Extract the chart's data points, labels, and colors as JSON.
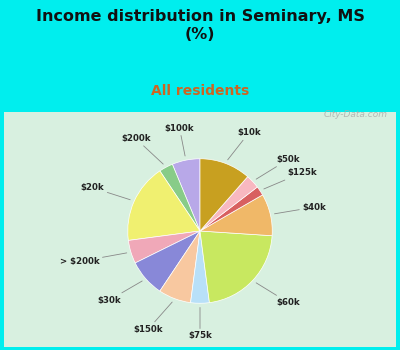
{
  "title": "Income distribution in Seminary, MS\n(%)",
  "subtitle": "All residents",
  "bg_cyan": "#00EEEE",
  "bg_chart": "#e8f5ee",
  "title_color": "#111111",
  "subtitle_color": "#cc6622",
  "labels": [
    "$100k",
    "$200k",
    "$20k",
    "> $200k",
    "$30k",
    "$150k",
    "$75k",
    "$60k",
    "$40k",
    "$125k",
    "$50k",
    "$10k"
  ],
  "values": [
    6,
    3,
    17,
    5,
    8,
    7,
    4,
    21,
    9,
    2,
    3,
    11
  ],
  "colors": [
    "#b8a8e8",
    "#88cc88",
    "#f0f070",
    "#f0a8b8",
    "#8888d8",
    "#f8c8a0",
    "#b8e0f8",
    "#c8e860",
    "#f0b868",
    "#d86060",
    "#f8b8c0",
    "#c8a020"
  ],
  "startangle": 90,
  "watermark": "City-Data.com"
}
